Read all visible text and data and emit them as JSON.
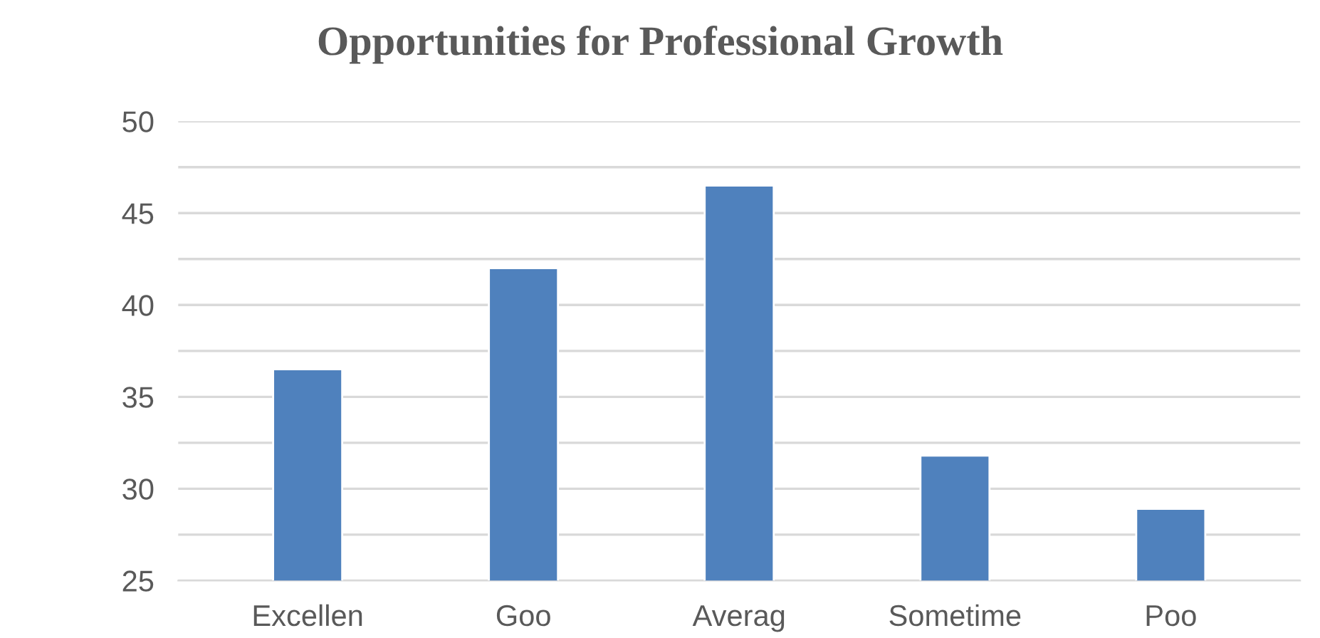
{
  "chart_data": {
    "type": "bar",
    "title": "Opportunities for Professional Growth",
    "categories": [
      "Excellen",
      "Goo",
      "Averag",
      "Sometime",
      "Poo"
    ],
    "values": [
      36.5,
      42,
      46.5,
      31.8,
      28.9
    ],
    "color": "#4f81bd",
    "ylim": [
      25,
      50
    ],
    "yticks": [
      25,
      {
        "value": 27.5,
        "label": null
      },
      30,
      {
        "value": 32.5,
        "label": null
      },
      35,
      {
        "value": 37.5,
        "label": null
      },
      40,
      {
        "value": 42.5,
        "label": null
      },
      45,
      {
        "value": 47.5,
        "label": null
      },
      50
    ],
    "grid": "y",
    "legend": false
  }
}
